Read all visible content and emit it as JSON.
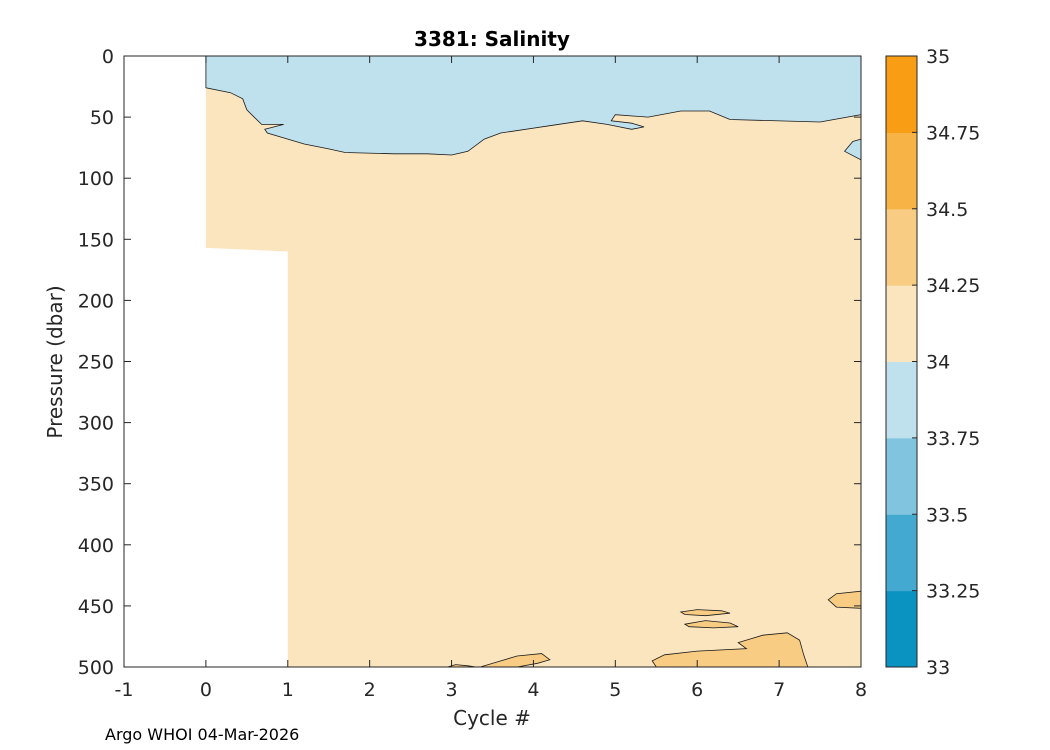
{
  "figure": {
    "title": "3381:  Salinity",
    "footer": "Argo WHOI 04-Mar-2026"
  },
  "chart_data": {
    "type": "contourf",
    "title": "3381:  Salinity",
    "xlabel": "Cycle #",
    "ylabel": "Pressure (dbar)",
    "xlim": [
      -1,
      8
    ],
    "ylim": [
      0,
      500
    ],
    "y_reversed": true,
    "xticks": [
      -1,
      0,
      1,
      2,
      3,
      4,
      5,
      6,
      7,
      8
    ],
    "yticks": [
      0,
      50,
      100,
      150,
      200,
      250,
      300,
      350,
      400,
      450,
      500
    ],
    "grid": false,
    "colorbar": {
      "levels": [
        33,
        33.25,
        33.5,
        33.75,
        34,
        34.25,
        34.5,
        34.75,
        35
      ],
      "tick_labels": [
        "33",
        "33.25",
        "33.5",
        "33.75",
        "34",
        "34.25",
        "34.5",
        "34.75",
        "35"
      ],
      "colors": [
        "#0a93c0",
        "#43a9d0",
        "#80c4e0",
        "#bfe0ed",
        "#fbe5bf",
        "#f8cc82",
        "#f8b347",
        "#f89d14"
      ]
    },
    "regions": [
      {
        "level_range": [
          34.0,
          34.25
        ],
        "color": "#fbe5bf",
        "polygon": [
          [
            0,
            0
          ],
          [
            1,
            0
          ],
          [
            1,
            500
          ],
          [
            8,
            500
          ],
          [
            8,
            0
          ],
          [
            0,
            0
          ],
          [
            0,
            158
          ],
          [
            1,
            158
          ],
          [
            1,
            0
          ]
        ],
        "note": "data domain: cycles 0-8, pressure 0-500 dbar (cycle 0 profile to ~158 dbar)"
      },
      {
        "level_range": [
          33.75,
          34.0
        ],
        "color": "#bfe0ed",
        "polygon": [
          [
            0,
            0
          ],
          [
            8,
            0
          ],
          [
            8,
            48
          ],
          [
            7.5,
            54
          ],
          [
            6.4,
            52
          ],
          [
            6.15,
            45
          ],
          [
            5.8,
            45
          ],
          [
            5.4,
            50
          ],
          [
            5,
            48
          ],
          [
            4.95,
            53
          ],
          [
            5.2,
            55
          ],
          [
            5.35,
            58
          ],
          [
            5.2,
            60
          ],
          [
            4.9,
            56
          ],
          [
            4.6,
            53
          ],
          [
            4.2,
            57
          ],
          [
            3.6,
            63
          ],
          [
            3.4,
            68
          ],
          [
            3.2,
            78
          ],
          [
            3.0,
            81
          ],
          [
            2.7,
            80
          ],
          [
            2.3,
            80
          ],
          [
            1.7,
            79
          ],
          [
            1.5,
            76
          ],
          [
            1.2,
            72
          ],
          [
            1.0,
            68
          ],
          [
            0.75,
            63
          ],
          [
            0.72,
            60
          ],
          [
            0.95,
            56
          ],
          [
            0.68,
            56
          ],
          [
            0.5,
            44
          ],
          [
            0.45,
            35
          ],
          [
            0.3,
            30
          ],
          [
            0,
            26
          ],
          [
            0,
            0
          ]
        ]
      },
      {
        "level_range": [
          33.75,
          34.0
        ],
        "color": "#bfe0ed",
        "polygon": [
          [
            8,
            68
          ],
          [
            7.9,
            70
          ],
          [
            7.8,
            78
          ],
          [
            8,
            85
          ]
        ]
      },
      {
        "level_range": [
          34.25,
          34.5
        ],
        "color": "#f8cc82",
        "polygon": [
          [
            5.45,
            495
          ],
          [
            5.6,
            490
          ],
          [
            6.0,
            487
          ],
          [
            6.6,
            485
          ],
          [
            6.5,
            480
          ],
          [
            6.6,
            478
          ],
          [
            6.8,
            474
          ],
          [
            7.1,
            472
          ],
          [
            7.25,
            478
          ],
          [
            7.3,
            490
          ],
          [
            7.35,
            500
          ],
          [
            5.5,
            500
          ]
        ]
      },
      {
        "level_range": [
          34.25,
          34.5
        ],
        "color": "#f8cc82",
        "polygon": [
          [
            3.35,
            500
          ],
          [
            3.55,
            496
          ],
          [
            3.8,
            491
          ],
          [
            4.1,
            489
          ],
          [
            4.2,
            494
          ],
          [
            4.05,
            497
          ],
          [
            3.8,
            500
          ]
        ]
      },
      {
        "level_range": [
          34.25,
          34.5
        ],
        "color": "#f8cc82",
        "polygon": [
          [
            7.6,
            445
          ],
          [
            7.7,
            440
          ],
          [
            8,
            438
          ],
          [
            8,
            452
          ],
          [
            7.7,
            451
          ]
        ]
      },
      {
        "level_range": [
          34.25,
          34.5
        ],
        "color": "#f8cc82",
        "polygon": [
          [
            5.8,
            455
          ],
          [
            6.0,
            453
          ],
          [
            6.3,
            454
          ],
          [
            6.4,
            456
          ],
          [
            6.1,
            458
          ],
          [
            5.85,
            457
          ]
        ]
      },
      {
        "level_range": [
          34.25,
          34.5
        ],
        "color": "#f8cc82",
        "polygon": [
          [
            5.85,
            465
          ],
          [
            6.1,
            462
          ],
          [
            6.4,
            464
          ],
          [
            6.5,
            467
          ],
          [
            6.2,
            468
          ],
          [
            5.9,
            467
          ]
        ]
      },
      {
        "level_range": [
          34.25,
          34.5
        ],
        "color": "#f8cc82",
        "polygon": [
          [
            2.95,
            500
          ],
          [
            3.05,
            498
          ],
          [
            3.2,
            499
          ],
          [
            3.3,
            500
          ]
        ]
      }
    ]
  }
}
